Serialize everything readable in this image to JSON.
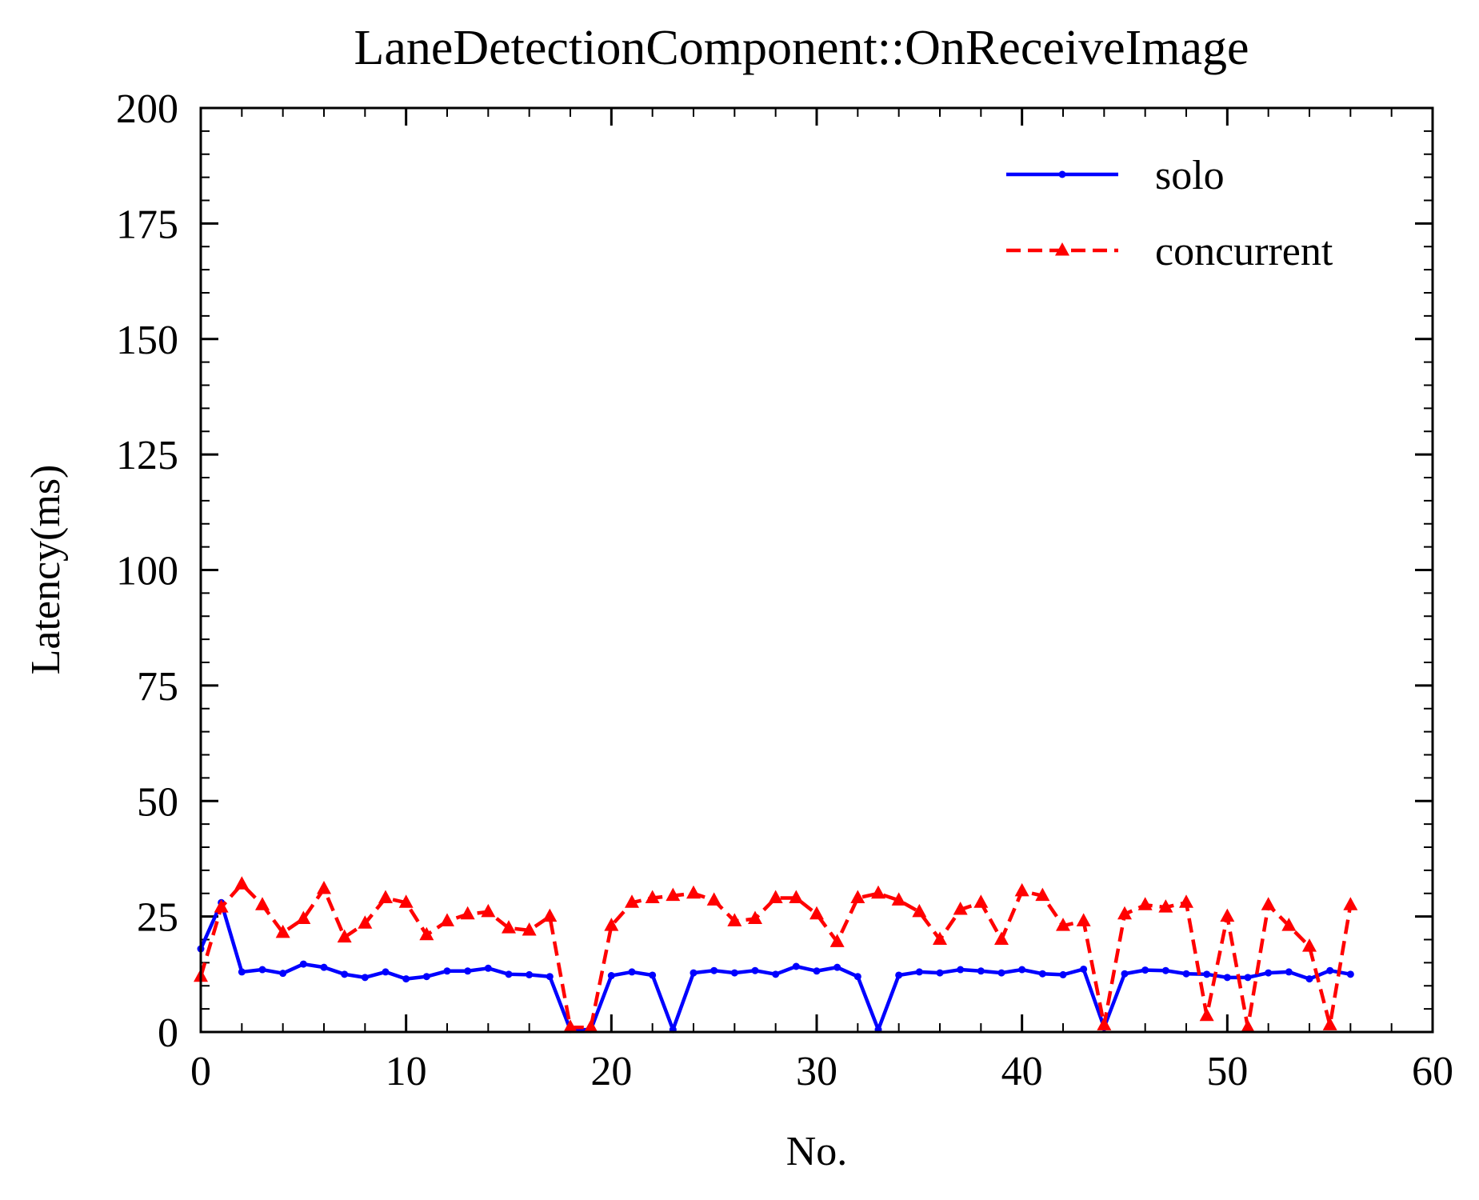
{
  "chart_data": {
    "type": "line",
    "title": "LaneDetectionComponent::OnReceiveImage",
    "xlabel": "No.",
    "ylabel": "Latency(ms)",
    "xlim": [
      0,
      60
    ],
    "ylim": [
      0,
      200
    ],
    "xticks": [
      0,
      10,
      20,
      30,
      40,
      50,
      60
    ],
    "yticks": [
      0,
      25,
      50,
      75,
      100,
      125,
      150,
      175,
      200
    ],
    "grid": false,
    "legend_position": "top-right",
    "x": [
      0,
      1,
      2,
      3,
      4,
      5,
      6,
      7,
      8,
      9,
      10,
      11,
      12,
      13,
      14,
      15,
      16,
      17,
      18,
      19,
      20,
      21,
      22,
      23,
      24,
      25,
      26,
      27,
      28,
      29,
      30,
      31,
      32,
      33,
      34,
      35,
      36,
      37,
      38,
      39,
      40,
      41,
      42,
      43,
      44,
      45,
      46,
      47,
      48,
      49,
      50,
      51,
      52,
      53,
      54,
      55,
      56
    ],
    "series": [
      {
        "name": "solo",
        "color": "#0000ff",
        "line_style": "solid",
        "marker": "point",
        "values": [
          18,
          28,
          13,
          13.5,
          12.7,
          14.7,
          14,
          12.5,
          11.8,
          13,
          11.5,
          12,
          13.2,
          13.2,
          13.8,
          12.5,
          12.4,
          12,
          0.5,
          0.5,
          12.2,
          13,
          12.3,
          0.5,
          12.8,
          13.3,
          12.8,
          13.3,
          12.5,
          14.2,
          13.2,
          14,
          12,
          0.5,
          12.3,
          13,
          12.8,
          13.5,
          13.2,
          12.8,
          13.5,
          12.6,
          12.4,
          13.6,
          1,
          12.6,
          13.4,
          13.3,
          12.6,
          12.5,
          11.8,
          11.8,
          12.8,
          13,
          11.5,
          13.3,
          12.5
        ]
      },
      {
        "name": "concurrent",
        "color": "#ff0000",
        "line_style": "dashed",
        "marker": "triangle",
        "values": [
          12,
          27,
          32,
          27.5,
          21.5,
          24.5,
          31,
          20.5,
          23.5,
          29,
          28,
          21,
          24,
          25.5,
          26,
          22.5,
          22,
          25,
          1,
          1,
          23,
          28,
          29,
          29.5,
          30,
          28.5,
          24,
          24.5,
          29,
          29,
          25.5,
          19.5,
          29,
          30,
          28.5,
          26,
          20,
          26.5,
          28,
          20,
          30.5,
          29.5,
          23,
          24,
          1.5,
          25.5,
          27.5,
          27,
          28,
          3.5,
          25,
          1,
          27.5,
          23,
          18.5,
          1.5,
          27.5
        ]
      }
    ]
  }
}
